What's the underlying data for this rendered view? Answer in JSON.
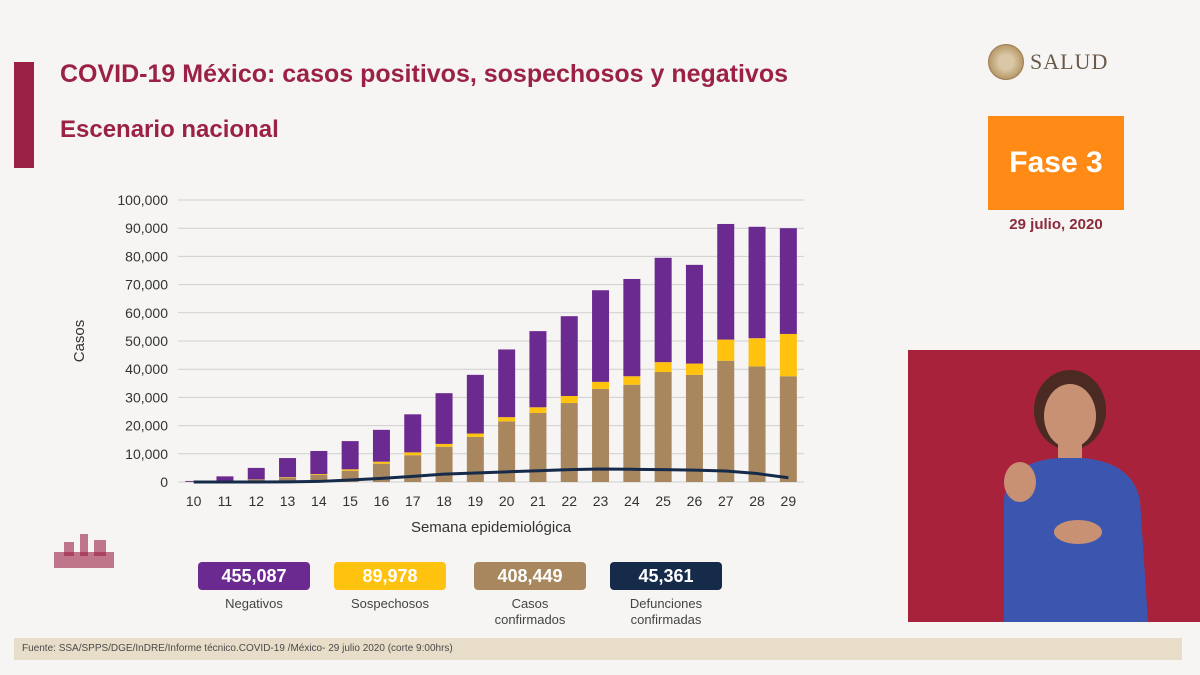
{
  "header": {
    "title": "COVID-19 México: casos positivos, sospechosos y negativos",
    "subtitle": "Escenario nacional"
  },
  "logo": {
    "text": "SALUD"
  },
  "badge": {
    "fase": "Fase 3",
    "fecha": "29 julio, 2020"
  },
  "stats": [
    {
      "value": "455,087",
      "label": "Negativos",
      "color": "#6b2a8f"
    },
    {
      "value": "89,978",
      "label": "Sospechosos",
      "color": "#ffc20e"
    },
    {
      "value": "408,449",
      "label": "Casos confirmados",
      "color": "#a9875e"
    },
    {
      "value": "45,361",
      "label": "Defunciones confirmadas",
      "color": "#162a4a"
    }
  ],
  "footer": {
    "source": "Fuente: SSA/SPPS/DGE/InDRE/Informe técnico.COVID-19 /México- 29 julio 2020 (corte 9:00hrs)"
  },
  "colors": {
    "accent": "#9b2245",
    "fase": "#ff8a16"
  },
  "chart_data": {
    "type": "bar",
    "stacked": true,
    "xlabel": "Semana epidemiológica",
    "ylabel": "Casos",
    "ylim": [
      0,
      100000
    ],
    "yticks": [
      0,
      10000,
      20000,
      30000,
      40000,
      50000,
      60000,
      70000,
      80000,
      90000,
      100000
    ],
    "ytick_labels": [
      "0",
      "10,000",
      "20,000",
      "30,000",
      "40,000",
      "50,000",
      "60,000",
      "70,000",
      "80,000",
      "90,000",
      "100,000"
    ],
    "grid": true,
    "categories": [
      "10",
      "11",
      "12",
      "13",
      "14",
      "15",
      "16",
      "17",
      "18",
      "19",
      "20",
      "21",
      "22",
      "23",
      "24",
      "25",
      "26",
      "27",
      "28",
      "29"
    ],
    "series": [
      {
        "name": "Casos confirmados",
        "color": "#a9875e",
        "values": [
          50,
          300,
          800,
          1500,
          2500,
          4000,
          6500,
          9500,
          12500,
          16000,
          21500,
          24500,
          28000,
          33000,
          34500,
          39000,
          38000,
          43000,
          41000,
          37500
        ]
      },
      {
        "name": "Sospechosos",
        "color": "#ffc20e",
        "values": [
          20,
          50,
          100,
          200,
          300,
          500,
          700,
          1000,
          1000,
          1200,
          1500,
          2000,
          2500,
          2500,
          3000,
          3500,
          4000,
          7500,
          10000,
          15000
        ]
      },
      {
        "name": "Negativos",
        "color": "#6b2a8f",
        "values": [
          300,
          1650,
          4100,
          6800,
          8200,
          10000,
          11300,
          13500,
          18000,
          20800,
          24000,
          27000,
          28300,
          32500,
          34500,
          37000,
          35000,
          41000,
          39500,
          37500
        ]
      }
    ],
    "line": {
      "name": "Defunciones confirmadas",
      "color": "#162a4a",
      "values": [
        0,
        0,
        0,
        50,
        200,
        700,
        1300,
        2000,
        2800,
        3200,
        3600,
        4000,
        4400,
        4600,
        4500,
        4400,
        4200,
        3900,
        3000,
        1500
      ]
    }
  }
}
